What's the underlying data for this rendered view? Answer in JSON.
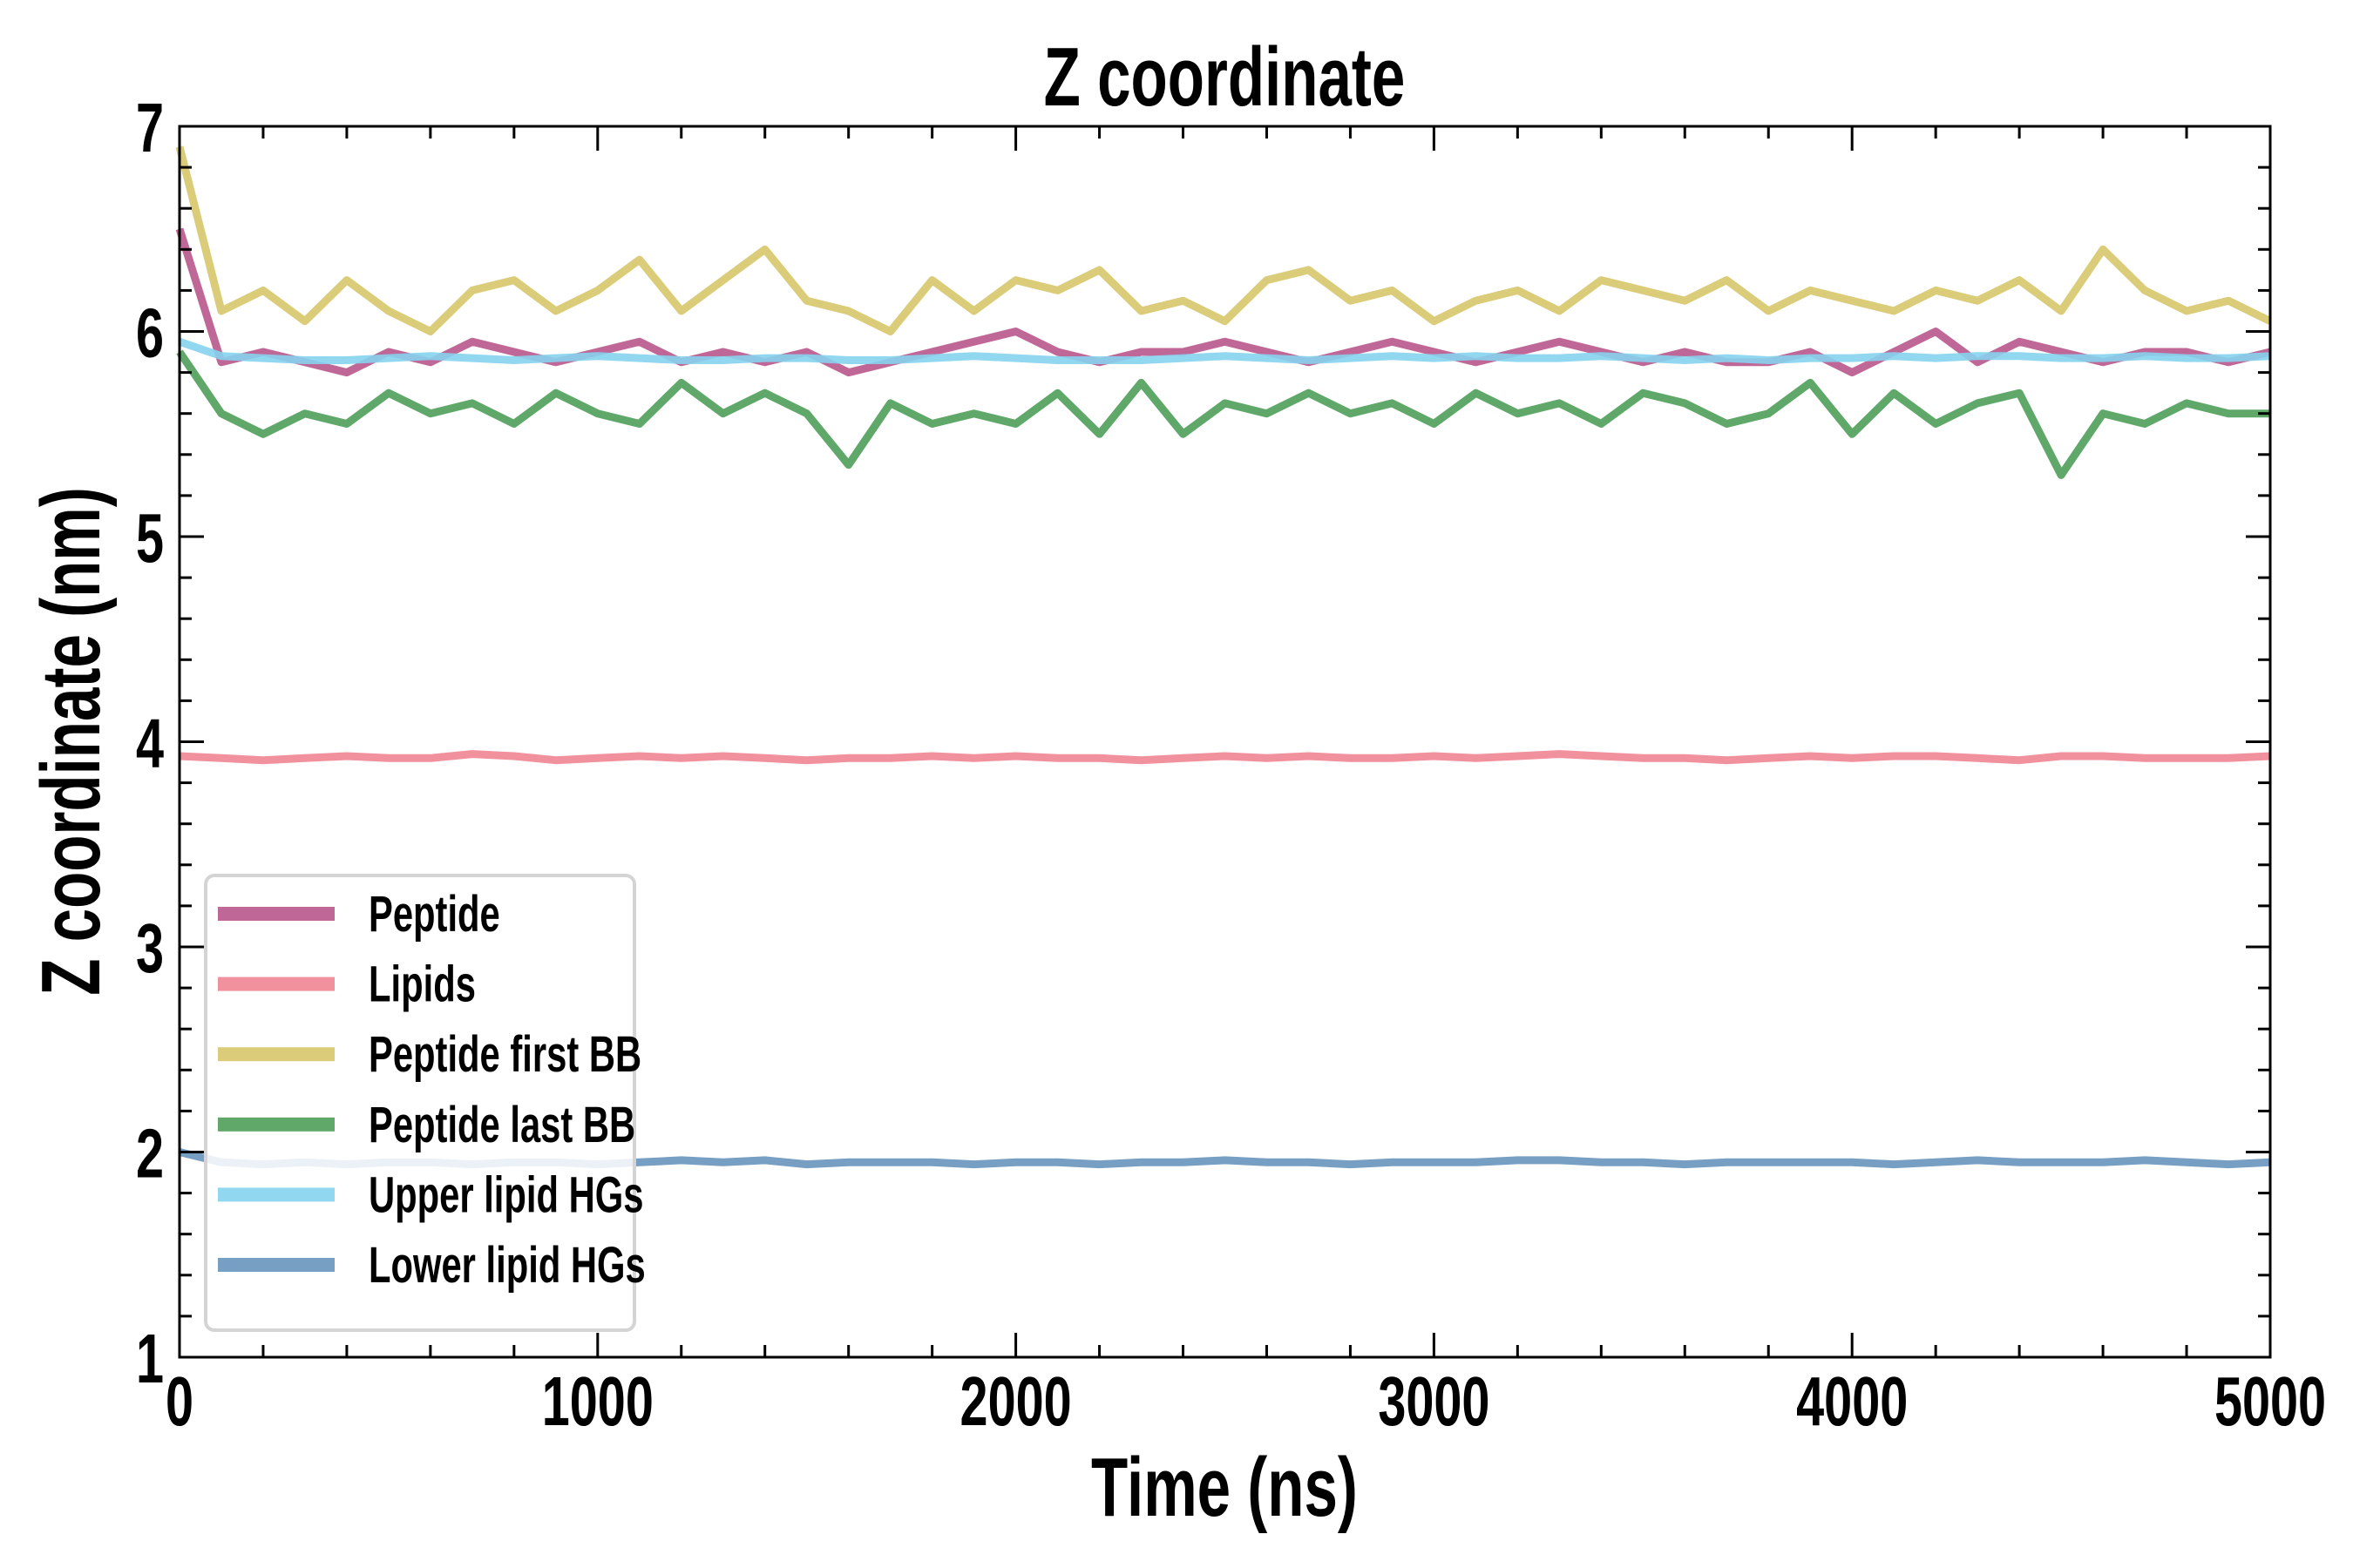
{
  "chart_data": {
    "type": "line",
    "title": "Z coordinate",
    "xlabel": "Time (ns)",
    "ylabel": "Z coordinate (nm)",
    "xlim": [
      0,
      5000
    ],
    "ylim": [
      1,
      7
    ],
    "xticks": [
      "0",
      "1000",
      "2000",
      "3000",
      "4000",
      "5000"
    ],
    "yticks": [
      "1",
      "2",
      "3",
      "4",
      "5",
      "6",
      "7"
    ],
    "grid": false,
    "legend_position": "lower-left",
    "x_step": 100,
    "series": [
      {
        "name": "Peptide",
        "color": "#b8568c",
        "values": [
          6.5,
          5.85,
          5.9,
          5.85,
          5.8,
          5.9,
          5.85,
          5.95,
          5.9,
          5.85,
          5.9,
          5.95,
          5.85,
          5.9,
          5.85,
          5.9,
          5.8,
          5.85,
          5.9,
          5.95,
          6.0,
          5.9,
          5.85,
          5.9,
          5.9,
          5.95,
          5.9,
          5.85,
          5.9,
          5.95,
          5.9,
          5.85,
          5.9,
          5.95,
          5.9,
          5.85,
          5.9,
          5.85,
          5.85,
          5.9,
          5.8,
          5.9,
          6.0,
          5.85,
          5.95,
          5.9,
          5.85,
          5.9,
          5.9,
          5.85,
          5.9
        ]
      },
      {
        "name": "Lipids",
        "color": "#f08592",
        "values": [
          3.93,
          3.92,
          3.91,
          3.92,
          3.93,
          3.92,
          3.92,
          3.94,
          3.93,
          3.91,
          3.92,
          3.93,
          3.92,
          3.93,
          3.92,
          3.91,
          3.92,
          3.92,
          3.93,
          3.92,
          3.93,
          3.92,
          3.92,
          3.91,
          3.92,
          3.93,
          3.92,
          3.93,
          3.92,
          3.92,
          3.93,
          3.92,
          3.93,
          3.94,
          3.93,
          3.92,
          3.92,
          3.91,
          3.92,
          3.93,
          3.92,
          3.93,
          3.93,
          3.92,
          3.91,
          3.93,
          3.93,
          3.92,
          3.92,
          3.92,
          3.93
        ]
      },
      {
        "name": "Peptide first BB",
        "color": "#d6c76a",
        "values": [
          6.9,
          6.1,
          6.2,
          6.05,
          6.25,
          6.1,
          6.0,
          6.2,
          6.25,
          6.1,
          6.2,
          6.35,
          6.1,
          6.25,
          6.4,
          6.15,
          6.1,
          6.0,
          6.25,
          6.1,
          6.25,
          6.2,
          6.3,
          6.1,
          6.15,
          6.05,
          6.25,
          6.3,
          6.15,
          6.2,
          6.05,
          6.15,
          6.2,
          6.1,
          6.25,
          6.2,
          6.15,
          6.25,
          6.1,
          6.2,
          6.15,
          6.1,
          6.2,
          6.15,
          6.25,
          6.1,
          6.4,
          6.2,
          6.1,
          6.15,
          6.05
        ]
      },
      {
        "name": "Peptide last BB",
        "color": "#4f9e5a",
        "values": [
          5.9,
          5.6,
          5.5,
          5.6,
          5.55,
          5.7,
          5.6,
          5.65,
          5.55,
          5.7,
          5.6,
          5.55,
          5.75,
          5.6,
          5.7,
          5.6,
          5.35,
          5.65,
          5.55,
          5.6,
          5.55,
          5.7,
          5.5,
          5.75,
          5.5,
          5.65,
          5.6,
          5.7,
          5.6,
          5.65,
          5.55,
          5.7,
          5.6,
          5.65,
          5.55,
          5.7,
          5.65,
          5.55,
          5.6,
          5.75,
          5.5,
          5.7,
          5.55,
          5.65,
          5.7,
          5.3,
          5.6,
          5.55,
          5.65,
          5.6,
          5.6
        ]
      },
      {
        "name": "Upper lipid HGs",
        "color": "#86d3ee",
        "values": [
          5.95,
          5.88,
          5.87,
          5.86,
          5.86,
          5.87,
          5.88,
          5.87,
          5.86,
          5.87,
          5.88,
          5.87,
          5.86,
          5.86,
          5.87,
          5.87,
          5.86,
          5.86,
          5.87,
          5.88,
          5.87,
          5.86,
          5.86,
          5.86,
          5.87,
          5.88,
          5.87,
          5.86,
          5.87,
          5.88,
          5.87,
          5.88,
          5.87,
          5.87,
          5.88,
          5.87,
          5.86,
          5.87,
          5.86,
          5.87,
          5.87,
          5.88,
          5.87,
          5.88,
          5.88,
          5.87,
          5.87,
          5.88,
          5.87,
          5.87,
          5.88
        ]
      },
      {
        "name": "Lower lipid HGs",
        "color": "#6893bd",
        "values": [
          2.0,
          1.95,
          1.94,
          1.95,
          1.94,
          1.95,
          1.95,
          1.94,
          1.95,
          1.95,
          1.94,
          1.95,
          1.96,
          1.95,
          1.96,
          1.94,
          1.95,
          1.95,
          1.95,
          1.94,
          1.95,
          1.95,
          1.94,
          1.95,
          1.95,
          1.96,
          1.95,
          1.95,
          1.94,
          1.95,
          1.95,
          1.95,
          1.96,
          1.96,
          1.95,
          1.95,
          1.94,
          1.95,
          1.95,
          1.95,
          1.95,
          1.94,
          1.95,
          1.96,
          1.95,
          1.95,
          1.95,
          1.96,
          1.95,
          1.94,
          1.95
        ]
      }
    ]
  }
}
